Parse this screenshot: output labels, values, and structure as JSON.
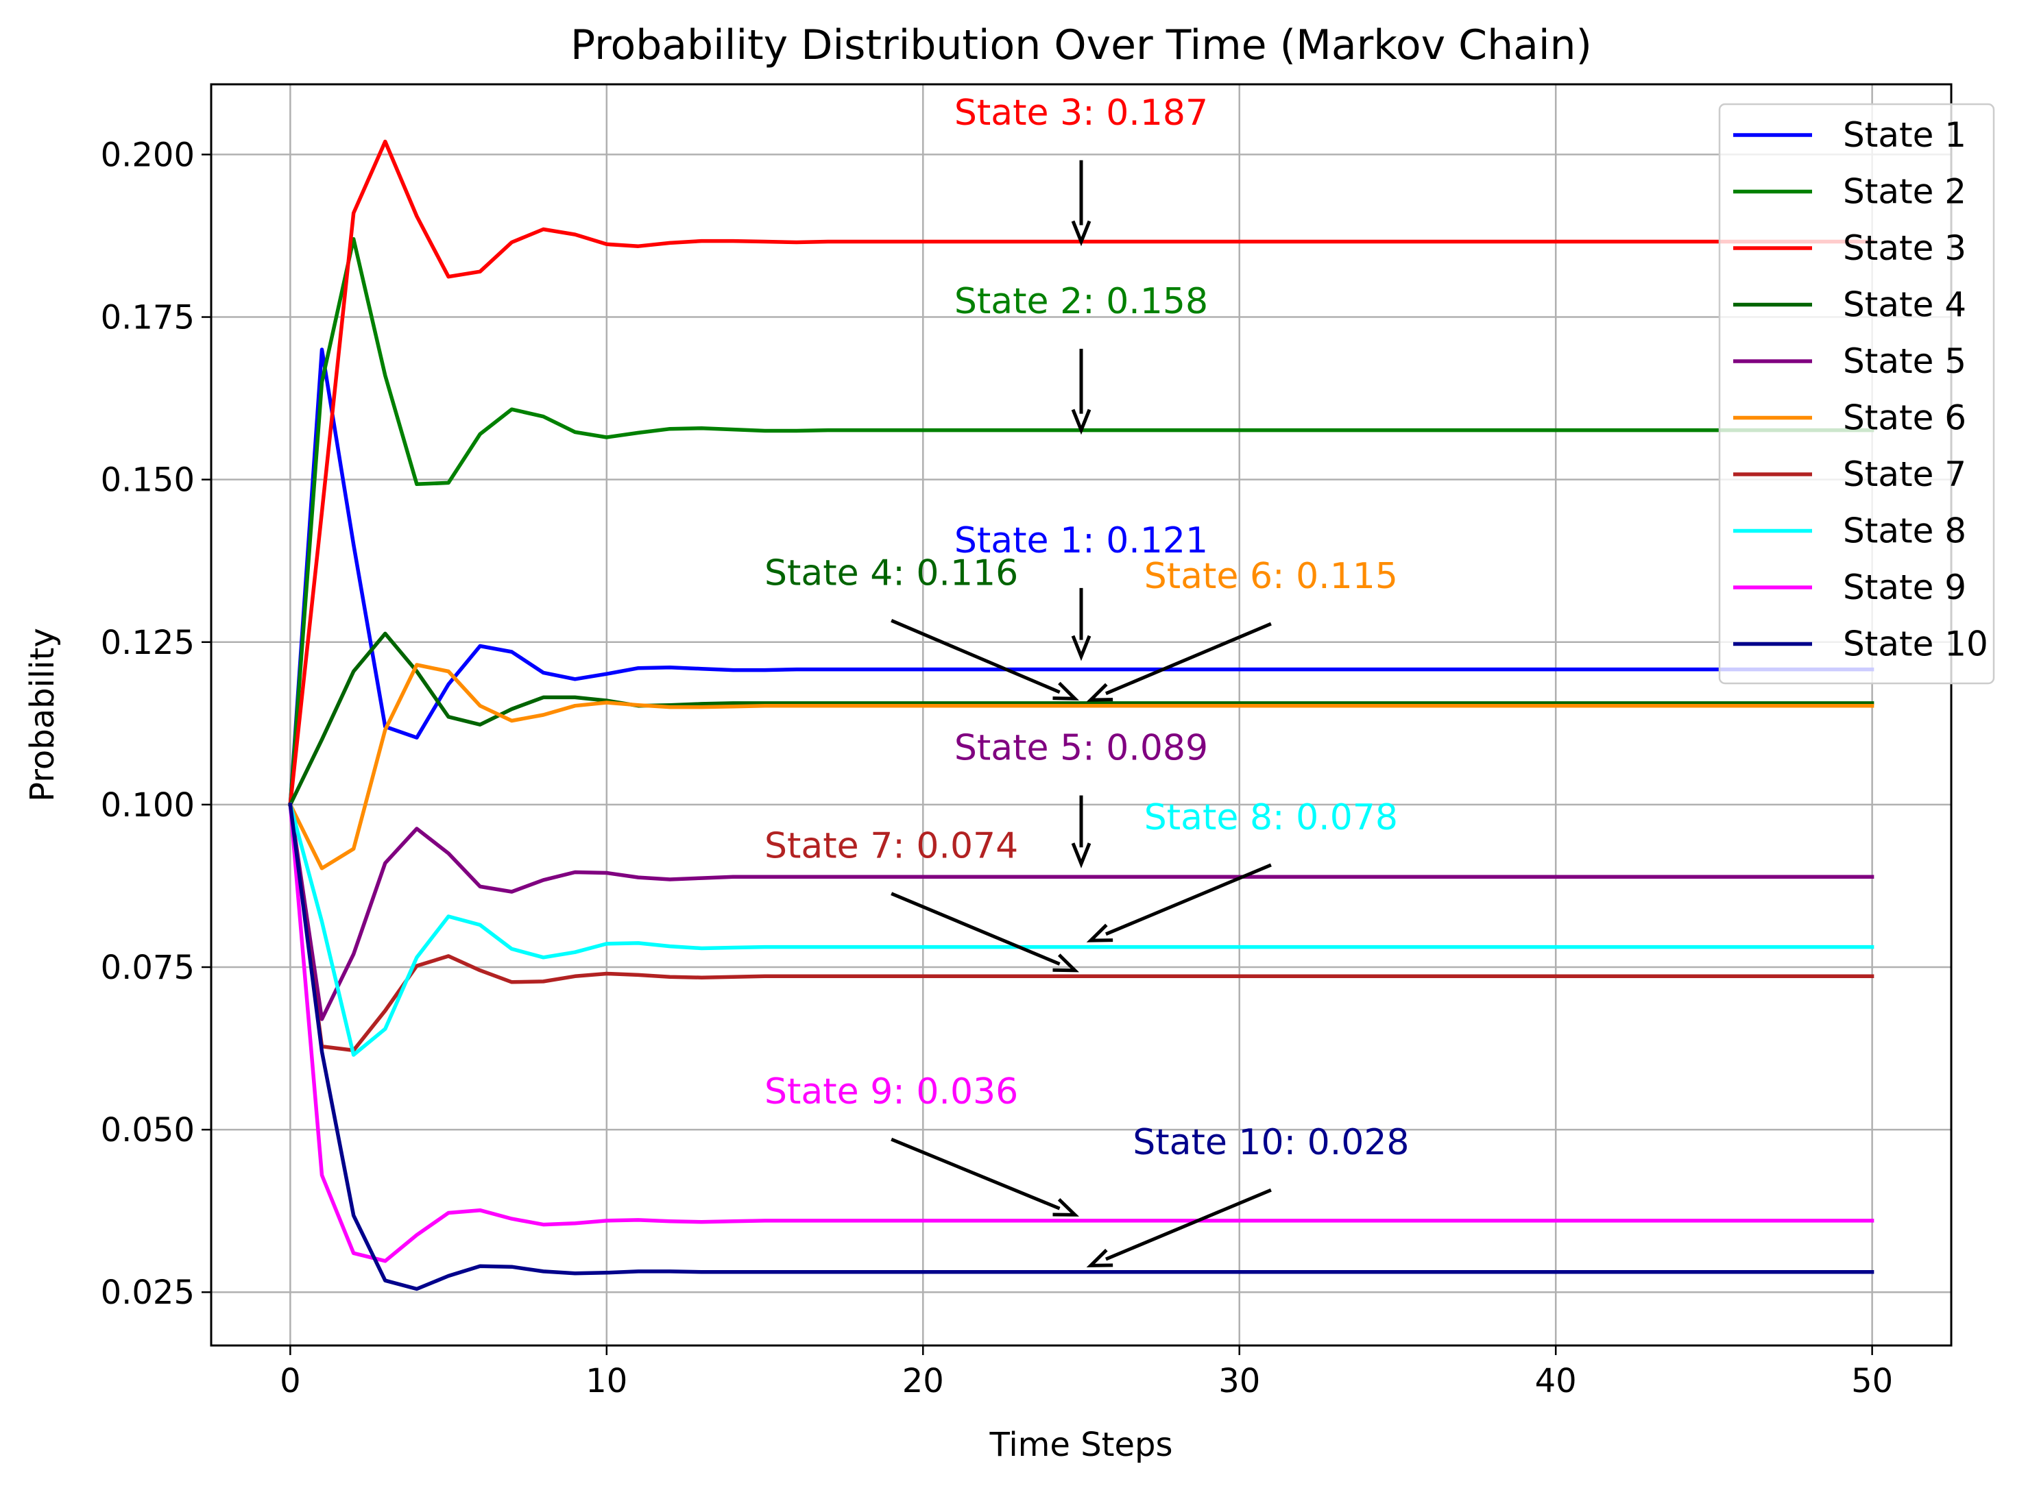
{
  "chart_data": {
    "type": "line",
    "title": "Probability Distribution Over Time (Markov Chain)",
    "xlabel": "Time Steps",
    "ylabel": "Probability",
    "xlim": [
      -2.5,
      52.5
    ],
    "ylim": [
      0.0168,
      0.2108
    ],
    "xticks": [
      0,
      10,
      20,
      30,
      40,
      50
    ],
    "xtick_labels": [
      "0",
      "10",
      "20",
      "30",
      "40",
      "50"
    ],
    "yticks": [
      0.025,
      0.05,
      0.075,
      0.1,
      0.125,
      0.15,
      0.175,
      0.2
    ],
    "ytick_labels": [
      "0.025",
      "0.050",
      "0.075",
      "0.100",
      "0.125",
      "0.150",
      "0.175",
      "0.200"
    ],
    "grid": true,
    "legend_position": "top-right",
    "series": [
      {
        "name": "State 1",
        "color": "#0000ff",
        "values": [
          0.1,
          0.17,
          0.14,
          0.112,
          0.1103,
          0.1185,
          0.1244,
          0.1235,
          0.1203,
          0.1193,
          0.1201,
          0.121,
          0.1211,
          0.1209,
          0.1207,
          0.1207,
          0.1208,
          0.1208,
          0.1208,
          0.1208,
          0.1208,
          0.1208,
          0.1208,
          0.1208,
          0.1208,
          0.1208,
          0.1208,
          0.1208,
          0.1208,
          0.1208,
          0.1208,
          0.1208,
          0.1208,
          0.1208,
          0.1208,
          0.1208,
          0.1208,
          0.1208,
          0.1208,
          0.1208,
          0.1208,
          0.1208,
          0.1208,
          0.1208,
          0.1208,
          0.1208,
          0.1208,
          0.1208,
          0.1208,
          0.1208,
          0.1208
        ]
      },
      {
        "name": "State 2",
        "color": "#008000",
        "values": [
          0.1,
          0.165,
          0.187,
          0.166,
          0.1493,
          0.1495,
          0.157,
          0.1608,
          0.1597,
          0.1573,
          0.1565,
          0.1572,
          0.1578,
          0.1579,
          0.1577,
          0.1575,
          0.1575,
          0.1576,
          0.1576,
          0.1576,
          0.1576,
          0.1576,
          0.1576,
          0.1576,
          0.1576,
          0.1576,
          0.1576,
          0.1576,
          0.1576,
          0.1576,
          0.1576,
          0.1576,
          0.1576,
          0.1576,
          0.1576,
          0.1576,
          0.1576,
          0.1576,
          0.1576,
          0.1576,
          0.1576,
          0.1576,
          0.1576,
          0.1576,
          0.1576,
          0.1576,
          0.1576,
          0.1576,
          0.1576,
          0.1576,
          0.1576
        ]
      },
      {
        "name": "State 3",
        "color": "#ff0000",
        "values": [
          0.1,
          0.145,
          0.191,
          0.202,
          0.1905,
          0.1812,
          0.182,
          0.1865,
          0.1885,
          0.1877,
          0.1862,
          0.1859,
          0.1864,
          0.1867,
          0.1867,
          0.1866,
          0.1865,
          0.1866,
          0.1866,
          0.1866,
          0.1866,
          0.1866,
          0.1866,
          0.1866,
          0.1866,
          0.1866,
          0.1866,
          0.1866,
          0.1866,
          0.1866,
          0.1866,
          0.1866,
          0.1866,
          0.1866,
          0.1866,
          0.1866,
          0.1866,
          0.1866,
          0.1866,
          0.1866,
          0.1866,
          0.1866,
          0.1866,
          0.1866,
          0.1866,
          0.1866,
          0.1866,
          0.1866,
          0.1866,
          0.1866,
          0.1866
        ]
      },
      {
        "name": "State 4",
        "color": "#006400",
        "values": [
          0.1,
          0.11,
          0.1205,
          0.1263,
          0.1205,
          0.1135,
          0.1123,
          0.1147,
          0.1165,
          0.1165,
          0.116,
          0.1152,
          0.1153,
          0.1155,
          0.1156,
          0.1156,
          0.1156,
          0.1156,
          0.1156,
          0.1156,
          0.1156,
          0.1156,
          0.1156,
          0.1156,
          0.1156,
          0.1156,
          0.1156,
          0.1156,
          0.1156,
          0.1156,
          0.1156,
          0.1156,
          0.1156,
          0.1156,
          0.1156,
          0.1156,
          0.1156,
          0.1156,
          0.1156,
          0.1156,
          0.1156,
          0.1156,
          0.1156,
          0.1156,
          0.1156,
          0.1156,
          0.1156,
          0.1156,
          0.1156,
          0.1156,
          0.1156
        ]
      },
      {
        "name": "State 5",
        "color": "#800080",
        "values": [
          0.1,
          0.067,
          0.077,
          0.091,
          0.0963,
          0.0925,
          0.0874,
          0.0866,
          0.0884,
          0.0896,
          0.0895,
          0.0888,
          0.0885,
          0.0887,
          0.0889,
          0.0889,
          0.0889,
          0.0889,
          0.0889,
          0.0889,
          0.0889,
          0.0889,
          0.0889,
          0.0889,
          0.0889,
          0.0889,
          0.0889,
          0.0889,
          0.0889,
          0.0889,
          0.0889,
          0.0889,
          0.0889,
          0.0889,
          0.0889,
          0.0889,
          0.0889,
          0.0889,
          0.0889,
          0.0889,
          0.0889,
          0.0889,
          0.0889,
          0.0889,
          0.0889,
          0.0889,
          0.0889,
          0.0889,
          0.0889,
          0.0889,
          0.0889
        ]
      },
      {
        "name": "State 6",
        "color": "#ff8c00",
        "values": [
          0.1,
          0.0902,
          0.0932,
          0.1115,
          0.1215,
          0.1205,
          0.1152,
          0.1129,
          0.1138,
          0.1152,
          0.1157,
          0.1153,
          0.115,
          0.115,
          0.1151,
          0.1152,
          0.1152,
          0.1152,
          0.1152,
          0.1152,
          0.1152,
          0.1152,
          0.1152,
          0.1152,
          0.1152,
          0.1152,
          0.1152,
          0.1152,
          0.1152,
          0.1152,
          0.1152,
          0.1152,
          0.1152,
          0.1152,
          0.1152,
          0.1152,
          0.1152,
          0.1152,
          0.1152,
          0.1152,
          0.1152,
          0.1152,
          0.1152,
          0.1152,
          0.1152,
          0.1152,
          0.1152,
          0.1152,
          0.1152,
          0.1152,
          0.1152
        ]
      },
      {
        "name": "State 7",
        "color": "#b22222",
        "values": [
          0.1,
          0.0628,
          0.0622,
          0.0683,
          0.0752,
          0.0767,
          0.0745,
          0.0727,
          0.0728,
          0.0736,
          0.074,
          0.0738,
          0.0735,
          0.0734,
          0.0735,
          0.0736,
          0.0736,
          0.0736,
          0.0736,
          0.0736,
          0.0736,
          0.0736,
          0.0736,
          0.0736,
          0.0736,
          0.0736,
          0.0736,
          0.0736,
          0.0736,
          0.0736,
          0.0736,
          0.0736,
          0.0736,
          0.0736,
          0.0736,
          0.0736,
          0.0736,
          0.0736,
          0.0736,
          0.0736,
          0.0736,
          0.0736,
          0.0736,
          0.0736,
          0.0736,
          0.0736,
          0.0736,
          0.0736,
          0.0736,
          0.0736,
          0.0736
        ]
      },
      {
        "name": "State 8",
        "color": "#00ffff",
        "values": [
          0.1,
          0.082,
          0.0615,
          0.0655,
          0.0765,
          0.0828,
          0.0815,
          0.0778,
          0.0765,
          0.0773,
          0.0786,
          0.0787,
          0.0782,
          0.0779,
          0.078,
          0.0781,
          0.0781,
          0.0781,
          0.0781,
          0.0781,
          0.0781,
          0.0781,
          0.0781,
          0.0781,
          0.0781,
          0.0781,
          0.0781,
          0.0781,
          0.0781,
          0.0781,
          0.0781,
          0.0781,
          0.0781,
          0.0781,
          0.0781,
          0.0781,
          0.0781,
          0.0781,
          0.0781,
          0.0781,
          0.0781,
          0.0781,
          0.0781,
          0.0781,
          0.0781,
          0.0781,
          0.0781,
          0.0781,
          0.0781,
          0.0781,
          0.0781
        ]
      },
      {
        "name": "State 9",
        "color": "#ff00ff",
        "values": [
          0.1,
          0.043,
          0.031,
          0.0298,
          0.0338,
          0.0372,
          0.0376,
          0.0363,
          0.0354,
          0.0356,
          0.036,
          0.0361,
          0.0359,
          0.0358,
          0.0359,
          0.036,
          0.036,
          0.036,
          0.036,
          0.036,
          0.036,
          0.036,
          0.036,
          0.036,
          0.036,
          0.036,
          0.036,
          0.036,
          0.036,
          0.036,
          0.036,
          0.036,
          0.036,
          0.036,
          0.036,
          0.036,
          0.036,
          0.036,
          0.036,
          0.036,
          0.036,
          0.036,
          0.036,
          0.036,
          0.036,
          0.036,
          0.036,
          0.036,
          0.036,
          0.036,
          0.036
        ]
      },
      {
        "name": "State 10",
        "color": "#00008b",
        "values": [
          0.1,
          0.062,
          0.0368,
          0.0268,
          0.0255,
          0.0275,
          0.029,
          0.0289,
          0.0282,
          0.0279,
          0.028,
          0.0282,
          0.0282,
          0.0281,
          0.0281,
          0.0281,
          0.0281,
          0.0281,
          0.0281,
          0.0281,
          0.0281,
          0.0281,
          0.0281,
          0.0281,
          0.0281,
          0.0281,
          0.0281,
          0.0281,
          0.0281,
          0.0281,
          0.0281,
          0.0281,
          0.0281,
          0.0281,
          0.0281,
          0.0281,
          0.0281,
          0.0281,
          0.0281,
          0.0281,
          0.0281,
          0.0281,
          0.0281,
          0.0281,
          0.0281,
          0.0281,
          0.0281,
          0.0281,
          0.0281,
          0.0281,
          0.0281
        ]
      }
    ],
    "annotations": [
      {
        "text": "State 3: 0.187",
        "color": "#ff0000",
        "target": [
          25,
          0.1866
        ],
        "text_pos": [
          25,
          0.2046
        ]
      },
      {
        "text": "State 2: 0.158",
        "color": "#008000",
        "target": [
          25,
          0.1576
        ],
        "text_pos": [
          25,
          0.1756
        ]
      },
      {
        "text": "State 1: 0.121",
        "color": "#0000ff",
        "target": [
          25,
          0.1228
        ],
        "text_pos": [
          25,
          0.1388
        ]
      },
      {
        "text": "State 4: 0.116",
        "color": "#006400",
        "target": [
          24.8,
          0.1163
        ],
        "text_pos": [
          19,
          0.1338
        ]
      },
      {
        "text": "State 6: 0.115",
        "color": "#ff8c00",
        "target": [
          25.3,
          0.1161
        ],
        "text_pos": [
          31,
          0.1333
        ]
      },
      {
        "text": "State 5: 0.089",
        "color": "#800080",
        "target": [
          25,
          0.0909
        ],
        "text_pos": [
          25,
          0.1069
        ]
      },
      {
        "text": "State 7: 0.074",
        "color": "#b22222",
        "target": [
          24.8,
          0.0745
        ],
        "text_pos": [
          19,
          0.0918
        ]
      },
      {
        "text": "State 8: 0.078",
        "color": "#00ffff",
        "target": [
          25.3,
          0.0791
        ],
        "text_pos": [
          31,
          0.0962
        ]
      },
      {
        "text": "State 9: 0.036",
        "color": "#ff00ff",
        "target": [
          24.8,
          0.0369
        ],
        "text_pos": [
          19,
          0.054
        ]
      },
      {
        "text": "State 10: 0.028",
        "color": "#00008b",
        "target": [
          25.3,
          0.0291
        ],
        "text_pos": [
          31,
          0.0462
        ]
      }
    ]
  }
}
